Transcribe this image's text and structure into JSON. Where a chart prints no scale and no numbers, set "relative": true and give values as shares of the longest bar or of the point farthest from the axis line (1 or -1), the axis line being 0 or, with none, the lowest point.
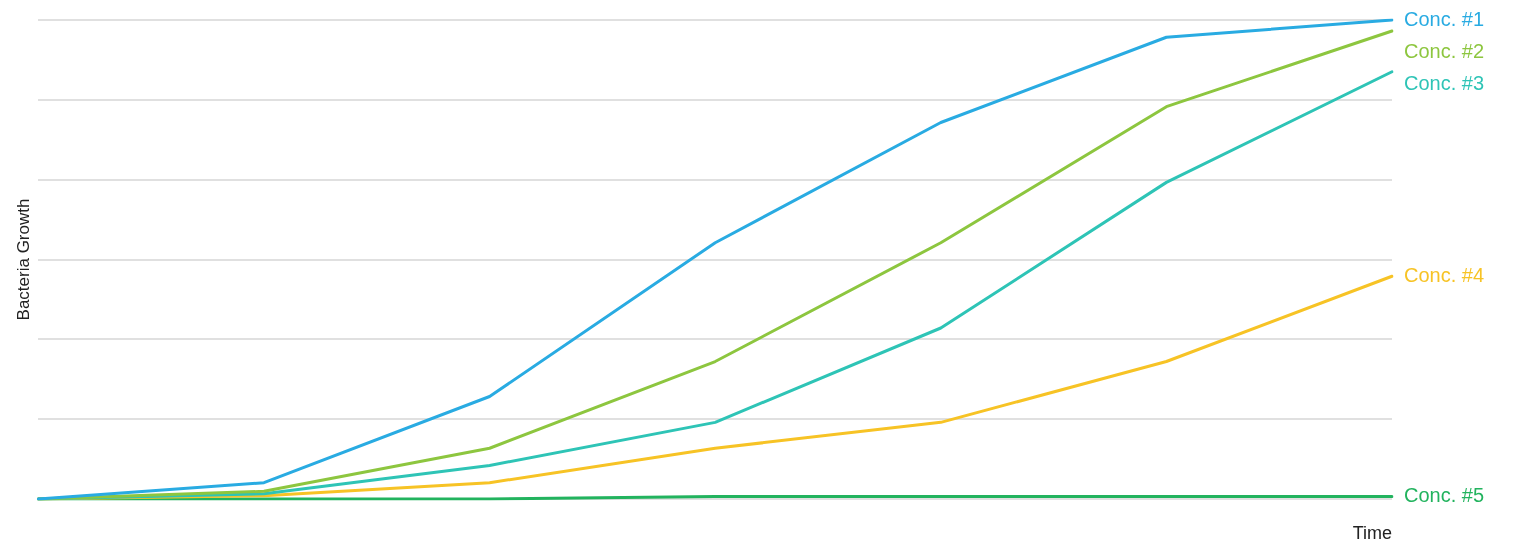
{
  "chart_data": {
    "type": "line",
    "relative": true,
    "xlabel": "Time",
    "ylabel": "Bacteria Growth",
    "categories": [
      null,
      null,
      null,
      null,
      null,
      null,
      null
    ],
    "grid": "y",
    "legend": false,
    "marker": "none",
    "series": [
      {
        "name": "Conc. #1",
        "color": "#29abe2",
        "values": [
          0,
          0.034,
          0.214,
          0.535,
          0.786,
          0.964,
          1
        ]
      },
      {
        "name": "Conc. #2",
        "color": "#8dc63f",
        "values": [
          0,
          0.016,
          0.106,
          0.287,
          0.535,
          0.819,
          0.977
        ]
      },
      {
        "name": "Conc. #3",
        "color": "#2ec4b6",
        "values": [
          0,
          0.011,
          0.07,
          0.16,
          0.357,
          0.661,
          0.892
        ]
      },
      {
        "name": "Conc. #4",
        "color": "#f7c325",
        "values": [
          0,
          0.007,
          0.034,
          0.106,
          0.16,
          0.287,
          0.465
        ]
      },
      {
        "name": "Conc. #5",
        "color": "#22b35e",
        "values": [
          0,
          0,
          0,
          0.005,
          0.005,
          0.005,
          0.005
        ]
      }
    ]
  }
}
